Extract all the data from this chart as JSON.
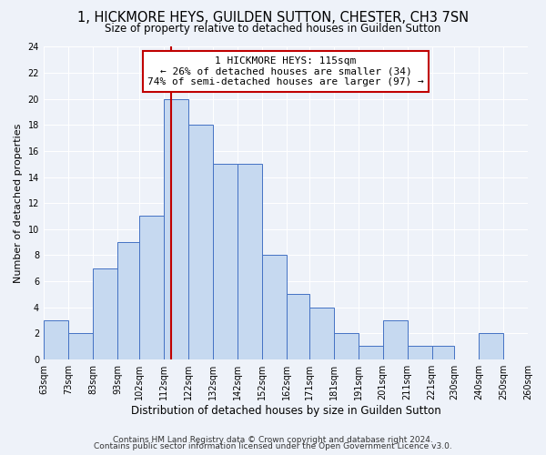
{
  "title": "1, HICKMORE HEYS, GUILDEN SUTTON, CHESTER, CH3 7SN",
  "subtitle": "Size of property relative to detached houses in Guilden Sutton",
  "xlabel": "Distribution of detached houses by size in Guilden Sutton",
  "ylabel": "Number of detached properties",
  "bin_edges": [
    63,
    73,
    83,
    93,
    102,
    112,
    122,
    132,
    142,
    152,
    162,
    171,
    181,
    191,
    201,
    211,
    221,
    230,
    240,
    250,
    260
  ],
  "counts": [
    3,
    2,
    7,
    9,
    11,
    20,
    18,
    15,
    15,
    8,
    5,
    4,
    2,
    1,
    3,
    1,
    1,
    0,
    2,
    0
  ],
  "bar_color": "#c6d9f0",
  "bar_edge_color": "#4472c4",
  "property_line_x": 115,
  "property_line_color": "#c00000",
  "annotation_line1": "1 HICKMORE HEYS: 115sqm",
  "annotation_line2": "← 26% of detached houses are smaller (34)",
  "annotation_line3": "74% of semi-detached houses are larger (97) →",
  "annotation_box_color": "#ffffff",
  "annotation_box_edge_color": "#c00000",
  "ylim": [
    0,
    24
  ],
  "yticks": [
    0,
    2,
    4,
    6,
    8,
    10,
    12,
    14,
    16,
    18,
    20,
    22,
    24
  ],
  "tick_labels": [
    "63sqm",
    "73sqm",
    "83sqm",
    "93sqm",
    "102sqm",
    "112sqm",
    "122sqm",
    "132sqm",
    "142sqm",
    "152sqm",
    "162sqm",
    "171sqm",
    "181sqm",
    "191sqm",
    "201sqm",
    "211sqm",
    "221sqm",
    "230sqm",
    "240sqm",
    "250sqm",
    "260sqm"
  ],
  "footer_line1": "Contains HM Land Registry data © Crown copyright and database right 2024.",
  "footer_line2": "Contains public sector information licensed under the Open Government Licence v3.0.",
  "background_color": "#eef2f9",
  "title_fontsize": 10.5,
  "subtitle_fontsize": 8.5,
  "xlabel_fontsize": 8.5,
  "ylabel_fontsize": 8,
  "tick_fontsize": 7,
  "annotation_fontsize": 8,
  "footer_fontsize": 6.5
}
